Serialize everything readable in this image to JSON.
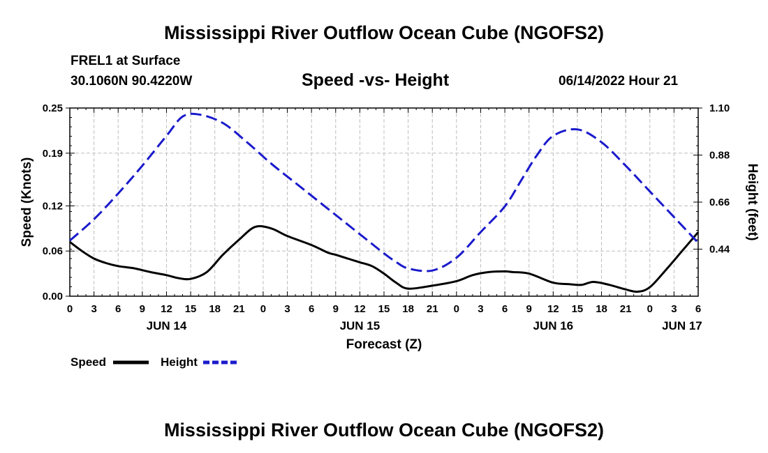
{
  "page": {
    "title": "Mississippi River Outflow Ocean Cube (NGOFS2)",
    "footer_title": "Mississippi River Outflow Ocean Cube (NGOFS2)",
    "station": "FREL1 at Surface",
    "coords": "30.1060N  90.4220W",
    "subtitle": "Speed -vs- Height",
    "timestamp": "06/14/2022 Hour 21"
  },
  "chart_data": {
    "type": "line",
    "title": "Speed -vs- Height",
    "xlabel": "Forecast (Z)",
    "ylabel": "Speed (Knots)",
    "y2label": "Height (feet)",
    "x_unit": "hours since 06/14/2022 00Z",
    "xlim": [
      0,
      78
    ],
    "ylim": [
      0,
      0.25
    ],
    "y2lim": [
      0.22,
      1.1
    ],
    "grid": true,
    "legend_position": "bottom-left",
    "x_ticks": [
      0,
      3,
      6,
      9,
      12,
      15,
      18,
      21,
      24,
      27,
      30,
      33,
      36,
      39,
      42,
      45,
      48,
      51,
      54,
      57,
      60,
      63,
      66,
      69,
      72,
      75,
      78
    ],
    "x_tick_labels": [
      "0",
      "3",
      "6",
      "9",
      "12",
      "15",
      "18",
      "21",
      "0",
      "3",
      "6",
      "9",
      "12",
      "15",
      "18",
      "21",
      "0",
      "3",
      "6",
      "9",
      "12",
      "15",
      "18",
      "21",
      "0",
      "3",
      "6"
    ],
    "date_labels": [
      {
        "x": 12,
        "label": "JUN 14"
      },
      {
        "x": 36,
        "label": "JUN 15"
      },
      {
        "x": 60,
        "label": "JUN 16"
      },
      {
        "x": 76,
        "label": "JUN 17"
      }
    ],
    "y_ticks": [
      0.0,
      0.06,
      0.12,
      0.19,
      0.25
    ],
    "y_tick_labels": [
      "0.00",
      "0.06",
      "0.12",
      "0.19",
      "0.25"
    ],
    "y2_ticks": [
      0.44,
      0.66,
      0.88,
      1.1
    ],
    "y2_tick_labels": [
      "0.44",
      "0.66",
      "0.88",
      "1.10"
    ],
    "series": [
      {
        "name": "Speed",
        "axis": "left",
        "color": "#000000",
        "dash": "solid",
        "x": [
          0,
          1.5,
          3,
          4.5,
          6,
          8,
          10,
          12,
          13.5,
          15,
          17,
          19,
          21,
          23,
          25,
          27,
          30,
          32,
          33,
          34.5,
          36,
          37.5,
          39,
          40.5,
          42,
          45,
          48,
          50,
          52,
          54,
          55,
          57,
          60,
          62,
          63.5,
          65,
          67,
          69,
          70.5,
          72,
          74,
          76,
          78
        ],
        "values": [
          0.072,
          0.06,
          0.05,
          0.044,
          0.04,
          0.037,
          0.032,
          0.028,
          0.024,
          0.023,
          0.032,
          0.055,
          0.075,
          0.092,
          0.09,
          0.08,
          0.068,
          0.058,
          0.055,
          0.05,
          0.045,
          0.04,
          0.03,
          0.018,
          0.01,
          0.014,
          0.02,
          0.028,
          0.032,
          0.033,
          0.032,
          0.03,
          0.018,
          0.016,
          0.015,
          0.019,
          0.015,
          0.009,
          0.006,
          0.012,
          0.035,
          0.06,
          0.085
        ]
      },
      {
        "name": "Height",
        "axis": "right",
        "color": "#1a1acc",
        "dash": "dashed",
        "x": [
          0,
          3,
          6,
          9,
          12,
          14,
          16,
          19,
          22,
          25,
          28,
          31,
          34,
          37,
          39,
          40.5,
          42,
          45,
          48,
          51,
          54,
          56,
          58,
          60,
          63,
          66,
          69,
          72,
          75,
          78
        ],
        "values": [
          0.48,
          0.58,
          0.7,
          0.83,
          0.97,
          1.06,
          1.07,
          1.03,
          0.94,
          0.84,
          0.75,
          0.66,
          0.57,
          0.48,
          0.42,
          0.38,
          0.35,
          0.34,
          0.4,
          0.52,
          0.64,
          0.76,
          0.88,
          0.97,
          1.0,
          0.94,
          0.83,
          0.71,
          0.59,
          0.47
        ]
      }
    ]
  }
}
